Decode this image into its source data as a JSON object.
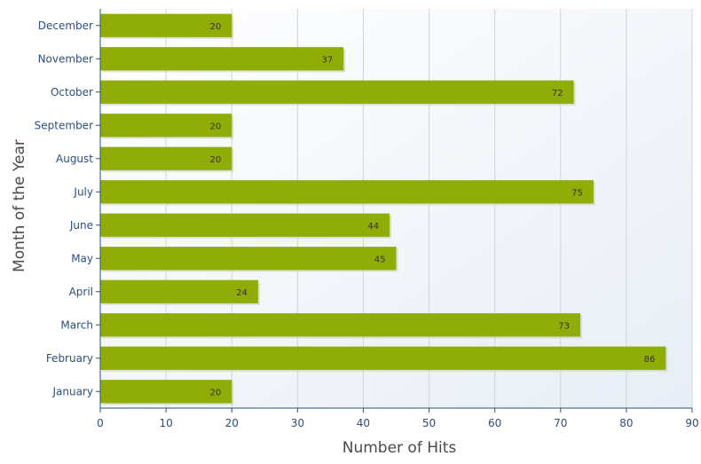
{
  "chart_data": {
    "type": "bar",
    "orientation": "horizontal",
    "categories": [
      "January",
      "February",
      "March",
      "April",
      "May",
      "June",
      "July",
      "August",
      "September",
      "October",
      "November",
      "December"
    ],
    "values": [
      20,
      86,
      73,
      24,
      45,
      44,
      75,
      20,
      20,
      72,
      37,
      20
    ],
    "xlabel": "Number of Hits",
    "ylabel": "Month of the Year",
    "xlim": [
      0,
      90
    ],
    "xticks": [
      0,
      10,
      20,
      30,
      40,
      50,
      60,
      70,
      80,
      90
    ],
    "grid": "vertical",
    "data_labels": true,
    "colors": {
      "bar": "#8fad06",
      "axis": "#2c4f7c",
      "grid": "#cfd4da"
    }
  }
}
